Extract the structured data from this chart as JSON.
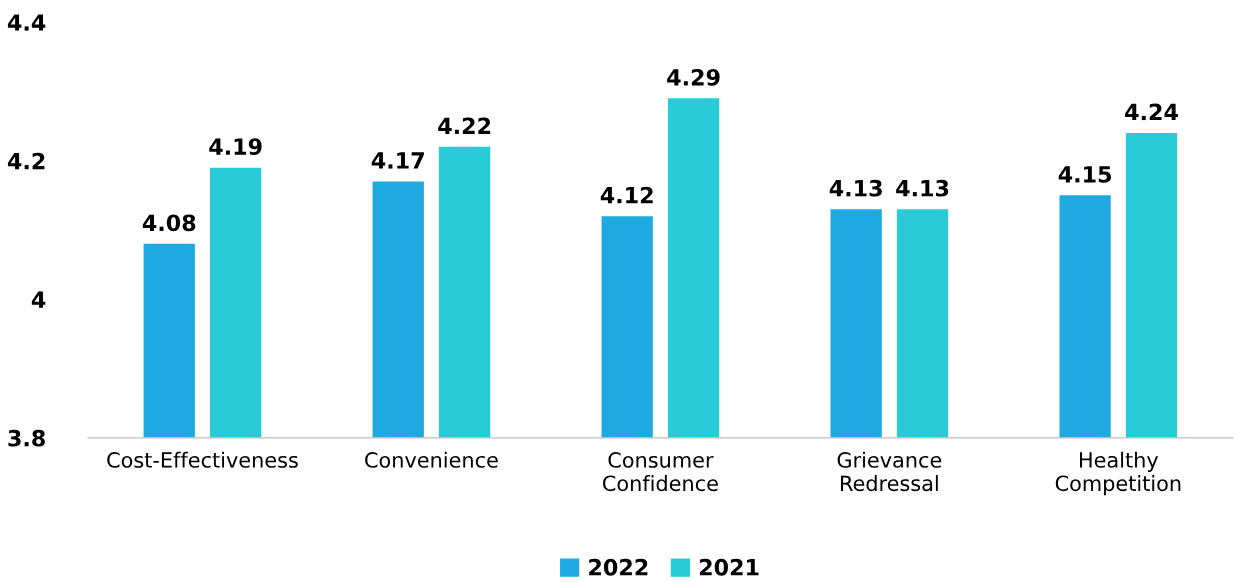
{
  "chart_data": {
    "type": "bar",
    "categories": [
      "Cost-Effectiveness",
      "Convenience",
      "Consumer\nConfidence",
      "Grievance\nRedressal",
      "Healthy\nCompetition"
    ],
    "series": [
      {
        "name": "2022",
        "color": "#1fa9e1",
        "values": [
          4.08,
          4.17,
          4.12,
          4.13,
          4.15
        ]
      },
      {
        "name": "2021",
        "color": "#29ccd6",
        "values": [
          4.19,
          4.22,
          4.29,
          4.13,
          4.24
        ]
      }
    ],
    "ylim": [
      3.8,
      4.4
    ],
    "yticks": [
      3.8,
      4,
      4.2,
      4.4
    ],
    "grid": false,
    "legend": "bottom",
    "data_labels": true
  }
}
